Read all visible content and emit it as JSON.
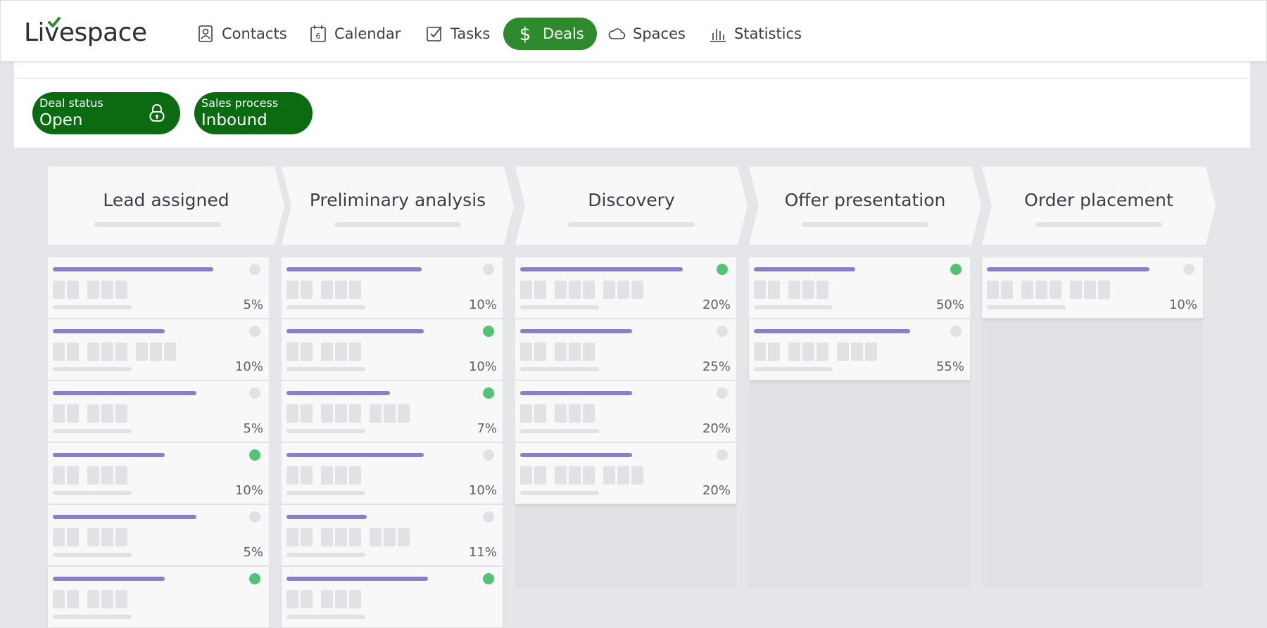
{
  "app": {
    "logo_text": "Livespace"
  },
  "nav": [
    {
      "label": "Contacts",
      "icon": "contacts-icon",
      "active": false
    },
    {
      "label": "Calendar",
      "icon": "calendar-icon",
      "calendar_day": "6",
      "active": false
    },
    {
      "label": "Tasks",
      "icon": "tasks-icon",
      "active": false
    },
    {
      "label": "Deals",
      "icon": "dollar-icon",
      "active": true
    },
    {
      "label": "Spaces",
      "icon": "cloud-icon",
      "active": false
    },
    {
      "label": "Statistics",
      "icon": "statistics-icon",
      "active": false
    }
  ],
  "filters": {
    "deal_status": {
      "label": "Deal status",
      "value": "Open",
      "icon": "lock-icon"
    },
    "sales_process": {
      "label": "Sales process",
      "value": "Inbound"
    }
  },
  "colors": {
    "nav_active": "#2e8b2c",
    "pill": "#0a6b10",
    "progress_bar": "#8c7fc8",
    "dot_active": "#52c372",
    "dot_inactive": "#e1e2e5"
  },
  "stages": [
    {
      "title": "Lead assigned",
      "cards": [
        {
          "pct": "5%",
          "progress": 0.76,
          "active": false,
          "blocks": [
            2,
            3
          ]
        },
        {
          "pct": "10%",
          "progress": 0.53,
          "active": false,
          "blocks": [
            2,
            3,
            3
          ]
        },
        {
          "pct": "5%",
          "progress": 0.68,
          "active": false,
          "blocks": [
            2,
            3
          ]
        },
        {
          "pct": "10%",
          "progress": 0.53,
          "active": true,
          "blocks": [
            2,
            3
          ]
        },
        {
          "pct": "5%",
          "progress": 0.68,
          "active": false,
          "blocks": [
            2,
            3
          ]
        },
        {
          "pct": "",
          "progress": 0.53,
          "active": true,
          "blocks": [
            2,
            3
          ]
        }
      ]
    },
    {
      "title": "Preliminary analysis",
      "cards": [
        {
          "pct": "10%",
          "progress": 0.64,
          "active": false,
          "blocks": [
            2,
            3
          ]
        },
        {
          "pct": "10%",
          "progress": 0.65,
          "active": true,
          "blocks": [
            2,
            3
          ]
        },
        {
          "pct": "7%",
          "progress": 0.49,
          "active": true,
          "blocks": [
            2,
            3,
            3
          ]
        },
        {
          "pct": "10%",
          "progress": 0.65,
          "active": false,
          "blocks": [
            2,
            3
          ]
        },
        {
          "pct": "11%",
          "progress": 0.38,
          "active": false,
          "blocks": [
            2,
            3,
            3
          ]
        },
        {
          "pct": "",
          "progress": 0.67,
          "active": true,
          "blocks": [
            2,
            3
          ]
        }
      ]
    },
    {
      "title": "Discovery",
      "cards": [
        {
          "pct": "20%",
          "progress": 0.77,
          "active": true,
          "blocks": [
            2,
            3,
            3
          ]
        },
        {
          "pct": "25%",
          "progress": 0.53,
          "active": false,
          "blocks": [
            2,
            3
          ]
        },
        {
          "pct": "20%",
          "progress": 0.53,
          "active": false,
          "blocks": [
            2,
            3
          ]
        },
        {
          "pct": "20%",
          "progress": 0.53,
          "active": false,
          "blocks": [
            2,
            3,
            3
          ]
        }
      ]
    },
    {
      "title": "Offer presentation",
      "cards": [
        {
          "pct": "50%",
          "progress": 0.48,
          "active": true,
          "blocks": [
            2,
            3
          ]
        },
        {
          "pct": "55%",
          "progress": 0.74,
          "active": false,
          "blocks": [
            2,
            3,
            3
          ]
        }
      ]
    },
    {
      "title": "Order placement",
      "cards": [
        {
          "pct": "10%",
          "progress": 0.77,
          "active": false,
          "blocks": [
            2,
            3,
            3
          ]
        }
      ]
    }
  ]
}
